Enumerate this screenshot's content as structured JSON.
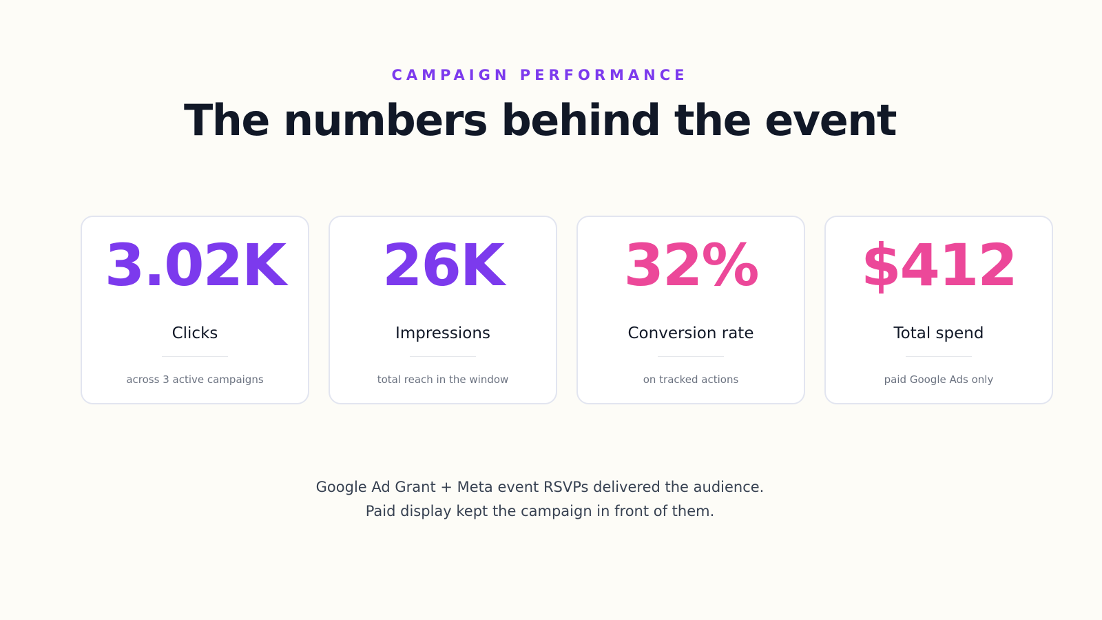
{
  "header": {
    "eyebrow": "CAMPAIGN PERFORMANCE",
    "title": "The numbers behind the event"
  },
  "cards": [
    {
      "value": "3.02K",
      "label": "Clicks",
      "note": "across 3 active campaigns",
      "color": "#7c3aed"
    },
    {
      "value": "26K",
      "label": "Impressions",
      "note": "total reach in the window",
      "color": "#7c3aed"
    },
    {
      "value": "32%",
      "label": "Conversion rate",
      "note": "on tracked actions",
      "color": "#ec4899"
    },
    {
      "value": "$412",
      "label": "Total spend",
      "note": "paid Google Ads only",
      "color": "#ec4899"
    }
  ],
  "footer": {
    "lines": [
      "Google Ad Grant + Meta event RSVPs delivered the audience.",
      "Paid display kept the campaign in front of them."
    ]
  }
}
